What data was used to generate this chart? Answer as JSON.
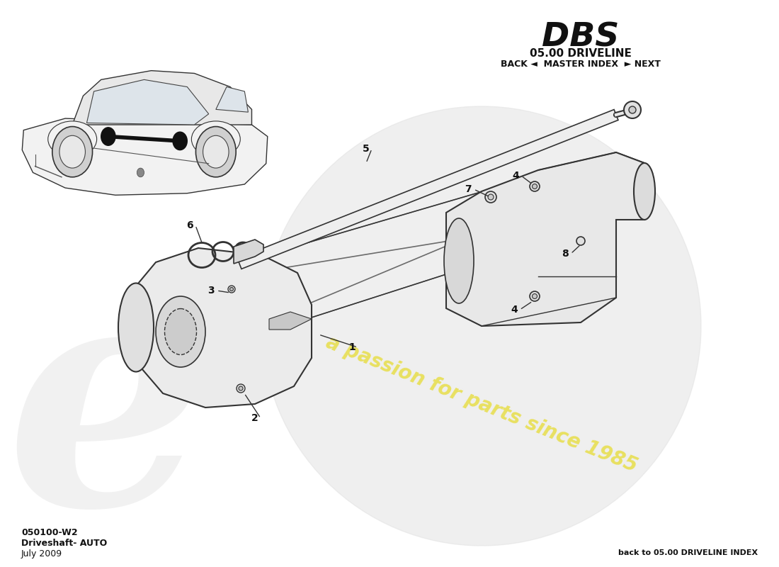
{
  "title_model": "DBS",
  "title_section": "05.00 DRIVELINE",
  "nav_text": "BACK ◄  MASTER INDEX  ► NEXT",
  "part_number": "050100-W2",
  "part_name": "Driveshaft- AUTO",
  "date": "July 2009",
  "back_link": "back to 05.00 DRIVELINE INDEX",
  "bg_color": "#ffffff",
  "watermark_text": "a passion for parts since 1985",
  "watermark_color": "#e8e060",
  "watermark_circle_color": "#e0e0e0",
  "line_color": "#333333",
  "label_color": "#111111"
}
